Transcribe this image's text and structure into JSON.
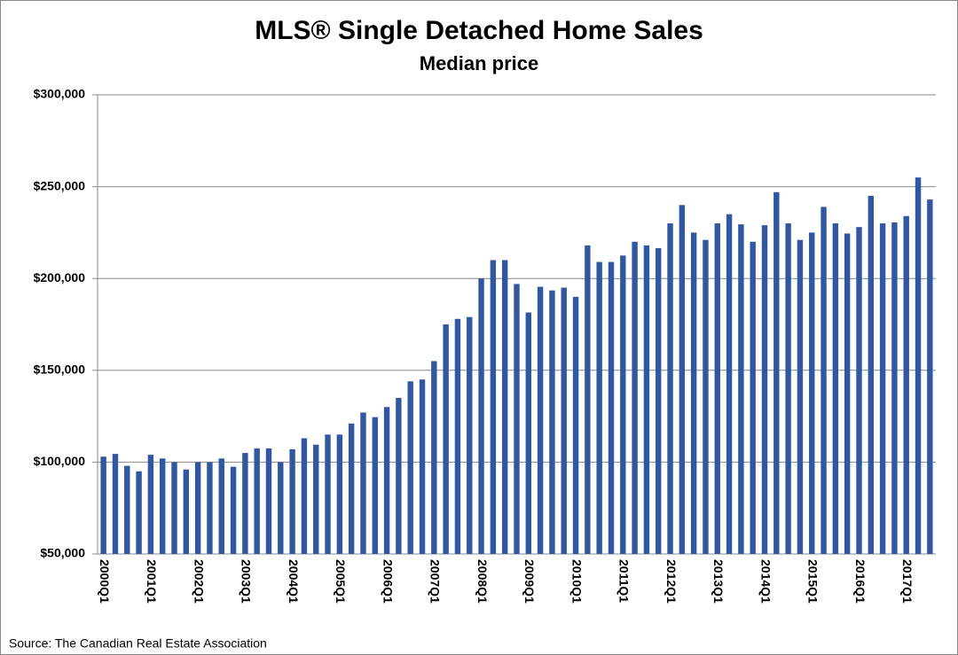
{
  "chart_data": {
    "type": "bar",
    "title": "MLS® Single Detached Home Sales",
    "subtitle": "Median price",
    "source": "Source: The Canadian Real Estate Association",
    "categories": [
      "2000Q1",
      null,
      null,
      null,
      "2001Q1",
      null,
      null,
      null,
      "2002Q1",
      null,
      null,
      null,
      "2003Q1",
      null,
      null,
      null,
      "2004Q1",
      null,
      null,
      null,
      "2005Q1",
      null,
      null,
      null,
      "2006Q1",
      null,
      null,
      null,
      "2007Q1",
      null,
      null,
      null,
      "2008Q1",
      null,
      null,
      null,
      "2009Q1",
      null,
      null,
      null,
      "2010Q1",
      null,
      null,
      null,
      "2011Q1",
      null,
      null,
      null,
      "2012Q1",
      null,
      null,
      null,
      "2013Q1",
      null,
      null,
      null,
      "2014Q1",
      null,
      null,
      null,
      "2015Q1",
      null,
      null,
      null,
      "2016Q1",
      null,
      null,
      null,
      "2017Q1",
      null,
      null
    ],
    "values": [
      103000,
      104500,
      98000,
      95000,
      104000,
      102000,
      100000,
      96000,
      100000,
      100000,
      102000,
      97500,
      105000,
      107500,
      107500,
      100000,
      107000,
      113000,
      109500,
      115000,
      115000,
      121000,
      127000,
      124500,
      130000,
      135000,
      144000,
      145000,
      155000,
      175000,
      178000,
      179000,
      200000,
      210000,
      210000,
      197000,
      181500,
      195500,
      193500,
      195000,
      190000,
      218000,
      209000,
      209000,
      212500,
      220000,
      218000,
      216500,
      230000,
      240000,
      225000,
      221000,
      230000,
      235000,
      229500,
      220000,
      229000,
      247000,
      230000,
      221000,
      225000,
      239000,
      230000,
      224500,
      228000,
      245000,
      230000,
      230500,
      234000,
      255000,
      243000
    ],
    "color": "#2f57a5",
    "ylim": [
      50000,
      300000
    ],
    "yticks": [
      {
        "value": 50000,
        "label": "$50,000"
      },
      {
        "value": 100000,
        "label": "$100,000"
      },
      {
        "value": 150000,
        "label": "$150,000"
      },
      {
        "value": 200000,
        "label": "$200,000"
      },
      {
        "value": 250000,
        "label": "$250,000"
      },
      {
        "value": 300000,
        "label": "$300,000"
      }
    ],
    "grid": true
  }
}
